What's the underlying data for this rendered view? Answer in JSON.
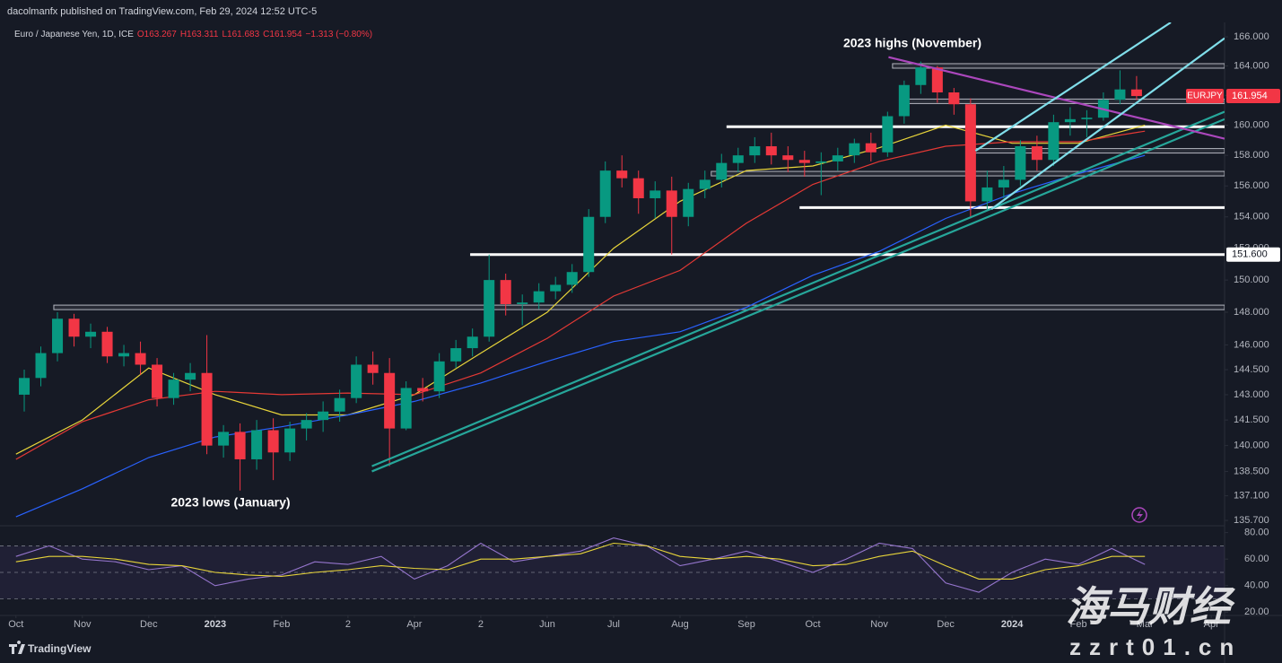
{
  "header": {
    "publisher": "dacolmanfx published on TradingView.com, Feb 29, 2024 12:52 UTC-5",
    "symbol": "Euro / Japanese Yen, 1D, ICE",
    "open": "O163.267",
    "high": "H163.311",
    "low": "L161.683",
    "close": "C161.954",
    "change": "−1.313 (−0.80%)"
  },
  "annotations": [
    "2023 highs (November)",
    "2023 lows (January)"
  ],
  "footer": {
    "brand": "TradingView"
  },
  "watermark": {
    "title": "海马财经",
    "site": "zzrt01.cn"
  },
  "chart_data": [
    {
      "type": "candlestick",
      "log_scale": true,
      "grid": false,
      "up_color": "#089981",
      "down_color": "#f23645",
      "x": [
        0,
        0.25,
        0.5,
        0.75,
        1,
        1.25,
        1.5,
        1.75,
        2,
        2.25,
        2.5,
        2.75,
        3,
        3.25,
        3.5,
        3.75,
        4,
        4.25,
        4.5,
        4.75,
        5,
        5.25,
        5.5,
        5.75,
        6,
        6.25,
        6.5,
        6.75,
        7,
        7.25,
        7.5,
        7.75,
        8,
        8.25,
        8.5,
        8.75,
        9,
        9.25,
        9.5,
        9.75,
        10,
        10.25,
        10.5,
        10.75,
        11,
        11.25,
        11.5,
        11.75,
        12,
        12.25,
        12.5,
        12.75,
        13,
        13.25,
        13.5,
        13.75,
        14,
        14.25,
        14.5,
        14.75,
        15,
        15.25,
        15.5,
        15.75,
        16,
        16.25,
        16.5,
        16.75
      ],
      "open": [
        143.0,
        144.0,
        145.5,
        147.6,
        146.5,
        146.8,
        145.3,
        145.5,
        144.8,
        142.8,
        143.9,
        144.3,
        140.0,
        140.8,
        139.2,
        140.9,
        139.6,
        141.0,
        141.5,
        142.0,
        142.8,
        144.8,
        144.3,
        141.0,
        143.4,
        143.2,
        145.0,
        145.8,
        146.5,
        150.0,
        148.5,
        148.6,
        149.3,
        149.7,
        150.5,
        154.0,
        157.0,
        156.5,
        155.2,
        155.7,
        154.0,
        155.8,
        156.4,
        157.5,
        158.0,
        158.6,
        158.0,
        157.7,
        157.5,
        157.6,
        158.0,
        158.8,
        158.2,
        160.6,
        162.7,
        163.9,
        162.2,
        161.4,
        155.0,
        155.9,
        156.4,
        158.6,
        157.7,
        160.2,
        160.4,
        160.5,
        161.7,
        162.4
      ],
      "high": [
        144.5,
        145.9,
        148.0,
        147.9,
        147.3,
        147.1,
        146.0,
        146.2,
        145.2,
        144.3,
        144.9,
        146.6,
        141.2,
        141.3,
        141.5,
        141.6,
        141.4,
        141.9,
        142.6,
        143.3,
        145.3,
        145.6,
        145.2,
        143.8,
        144.0,
        145.5,
        146.3,
        147.0,
        151.6,
        150.4,
        149.1,
        149.8,
        150.2,
        151.0,
        154.5,
        157.6,
        158.0,
        157.0,
        156.3,
        156.6,
        156.2,
        157.0,
        158.1,
        158.5,
        159.2,
        159.5,
        158.6,
        158.3,
        158.2,
        158.5,
        159.1,
        159.5,
        160.9,
        163.0,
        164.3,
        164.0,
        162.5,
        161.8,
        157.0,
        157.3,
        159.0,
        159.3,
        160.7,
        161.2,
        161.0,
        162.2,
        163.7,
        163.311
      ],
      "low": [
        142.0,
        143.5,
        145.0,
        145.9,
        145.8,
        144.9,
        144.7,
        144.2,
        142.3,
        142.4,
        143.2,
        139.5,
        139.3,
        137.4,
        138.6,
        138.0,
        139.1,
        140.3,
        140.8,
        141.4,
        142.5,
        143.6,
        138.8,
        140.9,
        142.6,
        142.8,
        144.6,
        145.3,
        146.2,
        147.8,
        147.2,
        148.2,
        148.8,
        149.2,
        150.2,
        153.6,
        155.9,
        154.2,
        153.9,
        151.6,
        153.4,
        155.2,
        155.9,
        156.9,
        157.5,
        157.4,
        156.9,
        156.6,
        155.4,
        157.0,
        157.5,
        157.6,
        157.9,
        160.1,
        162.1,
        161.5,
        160.7,
        153.9,
        154.4,
        155.2,
        156.0,
        157.0,
        157.3,
        159.3,
        159.2,
        160.3,
        161.4,
        161.683
      ],
      "close": [
        144.0,
        145.5,
        147.6,
        146.5,
        146.8,
        145.3,
        145.5,
        144.8,
        142.8,
        143.9,
        144.3,
        140.0,
        140.8,
        139.2,
        140.9,
        139.6,
        141.0,
        141.5,
        142.0,
        142.8,
        144.8,
        144.3,
        141.0,
        143.4,
        143.2,
        145.0,
        145.8,
        146.5,
        150.0,
        148.5,
        148.6,
        149.3,
        149.7,
        150.5,
        154.0,
        157.0,
        156.5,
        155.2,
        155.7,
        154.0,
        155.8,
        156.4,
        157.5,
        158.0,
        158.6,
        158.0,
        157.7,
        157.5,
        157.6,
        158.0,
        158.8,
        158.2,
        160.6,
        162.7,
        163.9,
        162.2,
        161.4,
        155.0,
        155.9,
        156.4,
        158.6,
        157.7,
        160.2,
        160.4,
        160.5,
        161.7,
        162.4,
        161.954
      ],
      "series": [
        {
          "color": "#e8d53a",
          "x": [
            0,
            1,
            2,
            3,
            4,
            5,
            6,
            7,
            8,
            9,
            10,
            11,
            12,
            13,
            14,
            15,
            16,
            17
          ],
          "values": [
            139.5,
            141.5,
            144.6,
            143.0,
            141.8,
            141.8,
            143.0,
            145.5,
            148.0,
            152.0,
            155.0,
            157.0,
            157.3,
            158.5,
            160.0,
            158.8,
            158.8,
            160.0
          ]
        },
        {
          "color": "#e53935",
          "x": [
            0,
            1,
            2,
            3,
            4,
            5,
            6,
            7,
            8,
            9,
            10,
            11,
            12,
            13,
            14,
            15,
            16,
            17
          ],
          "values": [
            139.2,
            141.4,
            142.7,
            143.2,
            143.0,
            143.1,
            143.0,
            144.3,
            146.4,
            149.0,
            150.6,
            153.6,
            156.1,
            157.6,
            158.6,
            158.9,
            158.9,
            159.6
          ]
        },
        {
          "color": "#2962ff",
          "x": [
            0,
            1,
            2,
            3,
            4,
            5,
            6,
            7,
            8,
            9,
            10,
            11,
            12,
            13,
            14,
            15,
            16,
            17
          ],
          "values": [
            135.9,
            137.5,
            139.3,
            140.5,
            141.1,
            141.8,
            142.6,
            143.7,
            145.0,
            146.2,
            146.8,
            148.3,
            150.3,
            151.8,
            153.9,
            155.5,
            156.8,
            158.0
          ]
        }
      ],
      "levels": [
        {
          "value": 164.0,
          "start": 13.2,
          "style": "box"
        },
        {
          "value": 161.6,
          "start": 13.43,
          "style": "box"
        },
        {
          "value": 159.9,
          "start": 10.7,
          "style": "line"
        },
        {
          "value": 158.3,
          "start": 14.35,
          "style": "box"
        },
        {
          "value": 156.8,
          "start": 10.47,
          "style": "box"
        },
        {
          "value": 154.6,
          "start": 11.8,
          "style": "line"
        },
        {
          "value": 151.6,
          "start": 6.84,
          "style": "line"
        },
        {
          "value": 148.3,
          "start": 0.57,
          "style": "box"
        }
      ],
      "trendlines": [
        {
          "color": "#26a69a",
          "points": [
            [
              5.36,
              138.8
            ],
            [
              18.2,
              160.9
            ]
          ]
        },
        {
          "color": "#26a69a",
          "points": [
            [
              5.36,
              138.5
            ],
            [
              18.2,
              160.4
            ]
          ]
        },
        {
          "color": "#ab47bc",
          "points": [
            [
              13.14,
              164.6
            ],
            [
              18.2,
              159.1
            ]
          ]
        },
        {
          "color": "#80deea",
          "points": [
            [
              14.45,
              158.3
            ],
            [
              17.39,
              167.0
            ]
          ]
        },
        {
          "color": "#80deea",
          "points": [
            [
              14.69,
              154.5
            ],
            [
              18.2,
              165.9
            ]
          ]
        }
      ],
      "xlim": [
        -0.24,
        18.2
      ],
      "xticks": [
        {
          "value": 0,
          "label": "Oct"
        },
        {
          "value": 1,
          "label": "Nov"
        },
        {
          "value": 2,
          "label": "Dec"
        },
        3,
        {
          "value": 4,
          "label": "Feb"
        },
        {
          "value": 5,
          "label": "2"
        },
        {
          "value": 6,
          "label": "Apr"
        },
        {
          "value": 7,
          "label": "2"
        },
        {
          "value": 8,
          "label": "Jun"
        },
        {
          "value": 9,
          "label": "Jul"
        },
        {
          "value": 10,
          "label": "Aug"
        },
        {
          "value": 11,
          "label": "Sep"
        },
        {
          "value": 12,
          "label": "Oct"
        },
        {
          "value": 13,
          "label": "Nov"
        },
        {
          "value": 14,
          "label": "Dec"
        },
        15,
        {
          "value": 16,
          "label": "Feb"
        },
        {
          "value": 17,
          "label": "Mar"
        },
        {
          "value": 18,
          "label": "Apr"
        }
      ],
      "xtick_years": [
        {
          "value": 3,
          "label": "2023"
        },
        {
          "value": 15,
          "label": "2024"
        }
      ],
      "ylim": [
        135.45,
        167.0
      ],
      "yticks": [
        {
          "value": 166,
          "label": "166.000"
        },
        {
          "value": 164,
          "label": "164.000"
        },
        {
          "value": 162,
          "label": "162.000"
        },
        {
          "value": 160,
          "label": "160.000"
        },
        {
          "value": 158,
          "label": "158.000"
        },
        {
          "value": 156,
          "label": "156.000"
        },
        {
          "value": 154,
          "label": "154.000"
        },
        {
          "value": 152,
          "label": "152.000"
        },
        {
          "value": 150,
          "label": "150.000"
        },
        {
          "value": 148,
          "label": "148.000"
        },
        {
          "value": 146,
          "label": "146.000"
        },
        {
          "value": 144.5,
          "label": "144.500"
        },
        {
          "value": 143,
          "label": "143.000"
        },
        {
          "value": 141.5,
          "label": "141.500"
        },
        {
          "value": 140,
          "label": "140.000"
        },
        {
          "value": 138.5,
          "label": "138.500"
        },
        {
          "value": 137.1,
          "label": "137.100"
        },
        {
          "value": 135.7,
          "label": "135.700"
        }
      ],
      "last_price": {
        "name": "EURJPY",
        "value": 161.954,
        "color": "#f23645"
      },
      "marked_price": {
        "value": 151.6,
        "label": "151.600"
      }
    },
    {
      "type": "line",
      "grid": false,
      "x": [
        0,
        0.5,
        1,
        1.5,
        2,
        2.5,
        3,
        3.5,
        4,
        4.5,
        5,
        5.5,
        6,
        6.5,
        7,
        7.5,
        8,
        8.5,
        9,
        9.5,
        10,
        10.5,
        11,
        11.5,
        12,
        12.5,
        13,
        13.5,
        14,
        14.5,
        15,
        15.5,
        16,
        16.5,
        17
      ],
      "series": [
        {
          "color": "#9575cd",
          "values": [
            62,
            70,
            60,
            58,
            52,
            55,
            40,
            45,
            48,
            58,
            56,
            62,
            45,
            55,
            72,
            58,
            62,
            66,
            76,
            70,
            55,
            60,
            66,
            58,
            50,
            60,
            72,
            68,
            42,
            35,
            50,
            60,
            56,
            68,
            56
          ]
        },
        {
          "color": "#e8d53a",
          "values": [
            58,
            62,
            62,
            60,
            56,
            55,
            50,
            48,
            47,
            50,
            52,
            55,
            53,
            52,
            60,
            60,
            62,
            64,
            72,
            70,
            62,
            60,
            62,
            60,
            55,
            56,
            62,
            66,
            55,
            45,
            45,
            52,
            55,
            62,
            62
          ]
        }
      ],
      "band": [
        30,
        70
      ],
      "midline": 50,
      "ylim": [
        17.5,
        84.5
      ],
      "yticks": [
        {
          "value": 80,
          "label": "80.00"
        },
        {
          "value": 60,
          "label": "60.00"
        },
        {
          "value": 40,
          "label": "40.00"
        },
        {
          "value": 20,
          "label": "20.00"
        }
      ]
    }
  ]
}
